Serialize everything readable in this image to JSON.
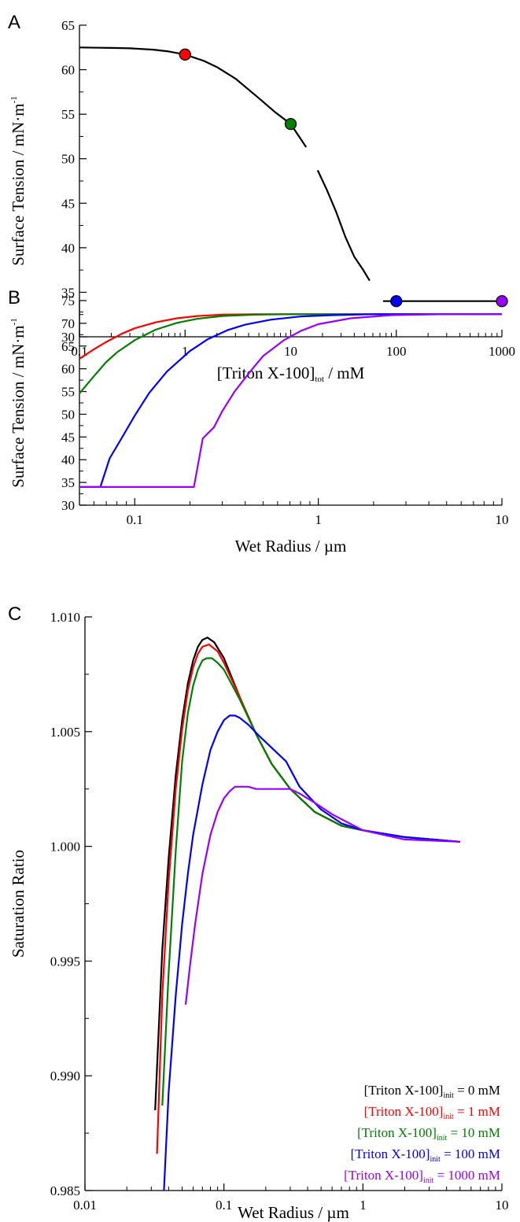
{
  "chart_data": [
    {
      "type": "line",
      "panel_label": "A",
      "xscale": "log",
      "xlim": [
        0.1,
        1000
      ],
      "ylim": [
        30,
        65
      ],
      "x_ticks": [
        0.1,
        1,
        10,
        100,
        1000
      ],
      "x_tick_labels": [
        "0.1",
        "1",
        "10",
        "100",
        "1000"
      ],
      "y_ticks": [
        30,
        35,
        40,
        45,
        50,
        55,
        60,
        65
      ],
      "y_tick_labels": [
        "30",
        "35",
        "40",
        "45",
        "50",
        "55",
        "60",
        "65"
      ],
      "xlabel": {
        "pre": "[Triton X-100]",
        "sub": "tot",
        "post": " / mM"
      },
      "ylabel": {
        "pre": "Surface Tension / mN·m",
        "sup": "-1"
      },
      "series": [
        {
          "color": "#000000",
          "x": [
            0.1,
            0.2,
            0.3,
            0.5,
            0.7,
            1,
            1.5,
            2,
            3,
            5,
            7,
            10,
            12,
            14
          ],
          "y": [
            62.5,
            62.45,
            62.4,
            62.25,
            62.05,
            61.7,
            61.0,
            60.3,
            59.0,
            56.8,
            55.3,
            53.9,
            52.5,
            51.3
          ]
        },
        {
          "color": "#000000",
          "x": [
            18,
            22,
            27,
            33,
            40,
            48,
            56
          ],
          "y": [
            48.7,
            46.5,
            44.0,
            41.2,
            39.0,
            37.6,
            36.3
          ]
        },
        {
          "color": "#000000",
          "x": [
            75,
            100,
            200,
            500,
            1000
          ],
          "y": [
            34,
            34,
            34,
            34,
            34
          ]
        }
      ],
      "markers": [
        {
          "x": 1,
          "y": 61.7,
          "color": "#ff0000"
        },
        {
          "x": 10,
          "y": 53.9,
          "color": "#008000"
        },
        {
          "x": 100,
          "y": 34,
          "color": "#0000ff"
        },
        {
          "x": 1000,
          "y": 34,
          "color": "#9900ff"
        }
      ]
    },
    {
      "type": "line",
      "panel_label": "B",
      "xscale": "log",
      "xlim": [
        0.05,
        10
      ],
      "ylim": [
        30,
        75
      ],
      "x_ticks": [
        0.1,
        1,
        10
      ],
      "x_tick_labels": [
        "0.1",
        "1",
        "10"
      ],
      "y_ticks": [
        30,
        35,
        40,
        45,
        50,
        55,
        60,
        65,
        70,
        75
      ],
      "y_tick_labels": [
        "30",
        "35",
        "40",
        "45",
        "50",
        "55",
        "60",
        "65",
        "70",
        "75"
      ],
      "xlabel": {
        "pre": "Wet Radius / µm",
        "sub": "",
        "post": ""
      },
      "ylabel": {
        "pre": "Surface Tension / mN·m",
        "sup": "-1"
      },
      "series": [
        {
          "color": "#ff0000",
          "x": [
            0.05,
            0.06,
            0.07,
            0.085,
            0.1,
            0.13,
            0.17,
            0.22,
            0.3,
            0.45,
            0.7,
            1,
            2,
            5,
            10
          ],
          "y": [
            62.2,
            64.3,
            65.9,
            67.7,
            68.9,
            70.2,
            71.1,
            71.6,
            71.9,
            72.0,
            72.0,
            72.0,
            72.0,
            72.0,
            72.0
          ]
        },
        {
          "color": "#008000",
          "x": [
            0.05,
            0.06,
            0.07,
            0.08,
            0.1,
            0.13,
            0.17,
            0.22,
            0.3,
            0.45,
            0.7,
            1,
            2,
            5,
            10
          ],
          "y": [
            54.6,
            58.4,
            61.5,
            63.6,
            66.3,
            68.6,
            70.1,
            71.0,
            71.6,
            71.9,
            72.0,
            72.0,
            72.0,
            72.0,
            72.0
          ]
        },
        {
          "color": "#0000ff",
          "x": [
            0.05,
            0.065,
            0.073,
            0.085,
            0.1,
            0.12,
            0.15,
            0.2,
            0.25,
            0.32,
            0.4,
            0.55,
            0.8,
            1.2,
            2,
            4,
            10
          ],
          "y": [
            34,
            34,
            40.3,
            44.8,
            49.7,
            54.7,
            59.4,
            63.9,
            66.5,
            68.5,
            69.7,
            70.8,
            71.5,
            71.8,
            72.0,
            72.0,
            72.0
          ]
        },
        {
          "color": "#9900ff",
          "x": [
            0.05,
            0.1,
            0.15,
            0.21,
            0.235,
            0.27,
            0.3,
            0.35,
            0.42,
            0.5,
            0.65,
            0.8,
            1,
            1.5,
            2.5,
            5,
            10
          ],
          "y": [
            34,
            34,
            34,
            34,
            44.7,
            47.1,
            50.7,
            55.0,
            59.1,
            62.8,
            66.3,
            68.3,
            69.8,
            71.1,
            71.8,
            72.0,
            72.0
          ]
        }
      ],
      "markers": []
    },
    {
      "type": "line",
      "panel_label": "C",
      "xscale": "log",
      "xlim": [
        0.01,
        10
      ],
      "ylim": [
        0.985,
        1.01
      ],
      "x_ticks": [
        0.01,
        0.1,
        1,
        10
      ],
      "x_tick_labels": [
        "0.01",
        "0.1",
        "1",
        "10"
      ],
      "y_ticks": [
        0.985,
        0.99,
        0.995,
        1.0,
        1.005,
        1.01
      ],
      "y_tick_labels": [
        "0.985",
        "0.990",
        "0.995",
        "1.000",
        "1.005",
        "1.010"
      ],
      "xlabel": {
        "pre": "Wet Radius / µm",
        "sub": "",
        "post": ""
      },
      "ylabel": {
        "pre": "Saturation Ratio",
        "sup": ""
      },
      "series": [
        {
          "color": "#000000",
          "x": [
            0.032,
            0.036,
            0.04,
            0.045,
            0.05,
            0.055,
            0.06,
            0.065,
            0.07,
            0.076,
            0.085,
            0.1,
            0.13,
            0.17,
            0.22,
            0.3,
            0.45,
            0.7,
            1,
            2,
            5
          ],
          "y": [
            0.9885,
            0.9955,
            0.9995,
            1.0031,
            1.0055,
            1.0071,
            1.0081,
            1.0087,
            1.009,
            1.0091,
            1.0089,
            1.0082,
            1.0065,
            1.0049,
            1.0036,
            1.0025,
            1.0015,
            1.0009,
            1.0007,
            1.0004,
            1.0002
          ]
        },
        {
          "color": "#ff0000",
          "x": [
            0.033,
            0.036,
            0.04,
            0.045,
            0.05,
            0.055,
            0.06,
            0.065,
            0.07,
            0.078,
            0.09,
            0.1,
            0.13,
            0.17,
            0.22,
            0.3,
            0.45,
            0.7,
            1,
            2,
            5
          ],
          "y": [
            0.9866,
            0.9935,
            0.9985,
            1.0025,
            1.0051,
            1.0068,
            1.0078,
            1.0084,
            1.0087,
            1.0088,
            1.0085,
            1.008,
            1.0065,
            1.0049,
            1.0036,
            1.0025,
            1.0015,
            1.0009,
            1.0007,
            1.0004,
            1.0002
          ]
        },
        {
          "color": "#008000",
          "x": [
            0.036,
            0.04,
            0.045,
            0.05,
            0.055,
            0.06,
            0.065,
            0.07,
            0.075,
            0.082,
            0.09,
            0.1,
            0.13,
            0.17,
            0.22,
            0.3,
            0.45,
            0.7,
            1,
            2,
            5
          ],
          "y": [
            0.9887,
            0.9945,
            0.9998,
            1.0037,
            1.0058,
            1.007,
            1.0077,
            1.0081,
            1.0082,
            1.0082,
            1.008,
            1.0077,
            1.0064,
            1.0049,
            1.0036,
            1.0025,
            1.0015,
            1.0009,
            1.0007,
            1.0004,
            1.0002
          ]
        },
        {
          "color": "#0000ff",
          "x": [
            0.037,
            0.04,
            0.045,
            0.05,
            0.055,
            0.06,
            0.07,
            0.08,
            0.09,
            0.1,
            0.11,
            0.12,
            0.13,
            0.15,
            0.18,
            0.22,
            0.28,
            0.35,
            0.5,
            0.7,
            1,
            2,
            5
          ],
          "y": [
            0.985,
            0.9893,
            0.9935,
            0.9966,
            0.9988,
            1.0005,
            1.0027,
            1.0042,
            1.005,
            1.0055,
            1.0057,
            1.0057,
            1.0056,
            1.0053,
            1.0048,
            1.0043,
            1.0037,
            1.0026,
            1.0016,
            1.001,
            1.0007,
            1.0004,
            1.0002
          ]
        },
        {
          "color": "#9900ff",
          "x": [
            0.053,
            0.057,
            0.062,
            0.07,
            0.08,
            0.09,
            0.1,
            0.11,
            0.12,
            0.135,
            0.15,
            0.17,
            0.2,
            0.25,
            0.3,
            0.35,
            0.45,
            0.6,
            0.8,
            1,
            2,
            5
          ],
          "y": [
            0.9931,
            0.9948,
            0.9966,
            0.9988,
            1.0005,
            1.0015,
            1.0021,
            1.0024,
            1.0026,
            1.0026,
            1.0026,
            1.0025,
            1.0025,
            1.0025,
            1.0025,
            1.0023,
            1.0019,
            1.0014,
            1.001,
            1.0007,
            1.0003,
            1.0002
          ]
        }
      ],
      "markers": [],
      "legend": [
        {
          "pre": "[Triton X-100]",
          "sub": "init",
          "post": " = 0 mM",
          "color": "#000000"
        },
        {
          "pre": "[Triton X-100]",
          "sub": "init",
          "post": " = 1 mM",
          "color": "#ff0000"
        },
        {
          "pre": "[Triton X-100]",
          "sub": "init",
          "post": " = 10 mM",
          "color": "#008000"
        },
        {
          "pre": "[Triton X-100]",
          "sub": "init",
          "post": " = 100 mM",
          "color": "#0000ff"
        },
        {
          "pre": "[Triton X-100]",
          "sub": "init",
          "post": " = 1000 mM",
          "color": "#9900ff"
        }
      ],
      "legend_position": "bottom-right"
    }
  ]
}
